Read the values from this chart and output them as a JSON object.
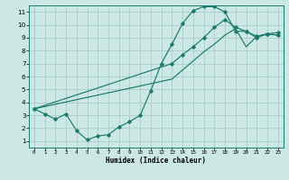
{
  "xlabel": "Humidex (Indice chaleur)",
  "xlim": [
    -0.5,
    23.5
  ],
  "ylim": [
    0.5,
    11.5
  ],
  "yticks": [
    1,
    2,
    3,
    4,
    5,
    6,
    7,
    8,
    9,
    10,
    11
  ],
  "xticks": [
    0,
    1,
    2,
    3,
    4,
    5,
    6,
    7,
    8,
    9,
    10,
    11,
    12,
    13,
    14,
    15,
    16,
    17,
    18,
    19,
    20,
    21,
    22,
    23
  ],
  "bg_color": "#cce8e4",
  "grid_color": "#aacccc",
  "line_color": "#1a7a6e",
  "line1_x": [
    0,
    1,
    2,
    3,
    4,
    5,
    6,
    7,
    8,
    9,
    10,
    11,
    12,
    13,
    14,
    15,
    16,
    17,
    18,
    19,
    20,
    21,
    22,
    23
  ],
  "line1_y": [
    3.5,
    3.1,
    2.7,
    3.1,
    1.8,
    1.1,
    1.4,
    1.5,
    2.1,
    2.5,
    3.0,
    4.9,
    7.0,
    8.5,
    10.1,
    11.1,
    11.4,
    11.4,
    11.0,
    9.5,
    9.5,
    9.1,
    9.3,
    9.4
  ],
  "line2_x": [
    0,
    13,
    14,
    15,
    16,
    17,
    18,
    19,
    20,
    21,
    22,
    23
  ],
  "line2_y": [
    3.5,
    7.0,
    7.7,
    8.3,
    9.0,
    9.8,
    10.4,
    9.8,
    9.5,
    9.0,
    9.3,
    9.2
  ],
  "line3_x": [
    0,
    13,
    14,
    15,
    16,
    17,
    18,
    19,
    20,
    21,
    22,
    23
  ],
  "line3_y": [
    3.5,
    5.8,
    6.5,
    7.2,
    7.9,
    8.5,
    9.2,
    9.7,
    8.3,
    9.1,
    9.3,
    9.2
  ]
}
